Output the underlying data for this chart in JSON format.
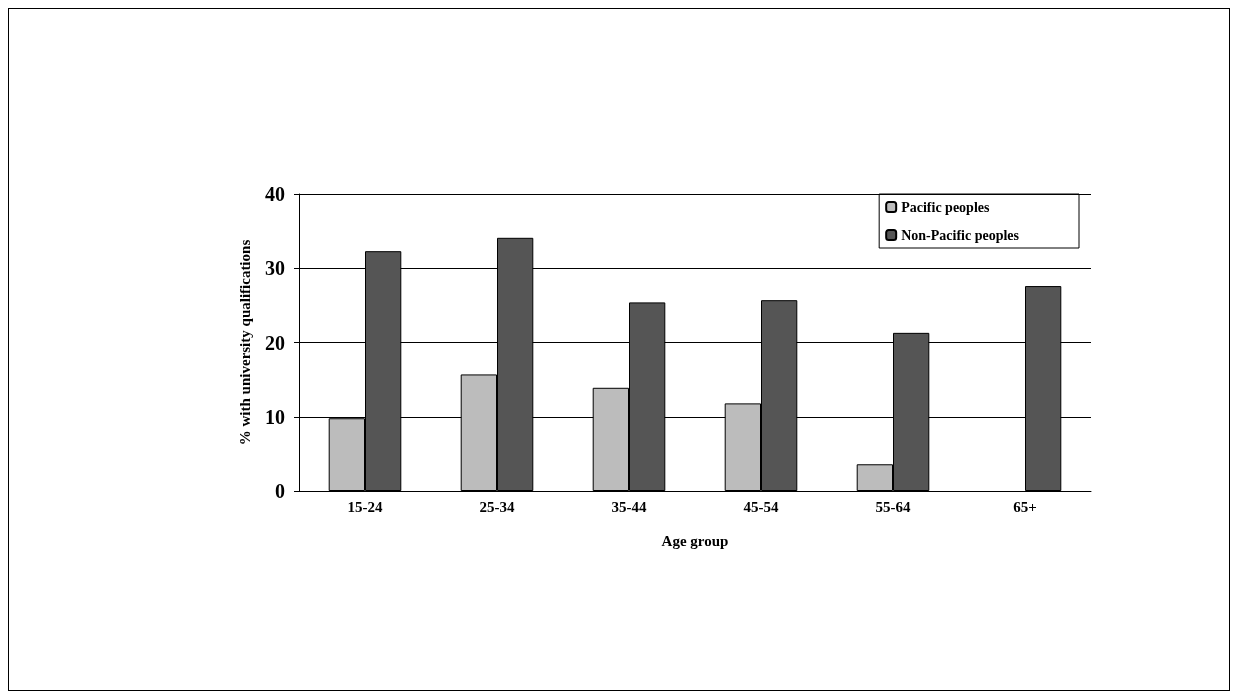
{
  "chart_data": {
    "type": "bar",
    "xlabel": "Age group",
    "ylabel": "% with university qualifications",
    "categories": [
      "15-24",
      "25-34",
      "35-44",
      "45-54",
      "55-64",
      "65+"
    ],
    "series": [
      {
        "name": "Pacific peoples",
        "color": "#bcbcbc",
        "values": [
          9.8,
          15.7,
          13.9,
          11.8,
          3.6,
          null
        ]
      },
      {
        "name": "Non-Pacific peoples",
        "color": "#555555",
        "values": [
          32.3,
          34.1,
          25.4,
          25.7,
          21.3,
          27.6
        ]
      }
    ],
    "ylim": [
      0,
      40
    ],
    "yticks": [
      0,
      10,
      20,
      30,
      40
    ],
    "grid": "y",
    "legend": "top right"
  }
}
